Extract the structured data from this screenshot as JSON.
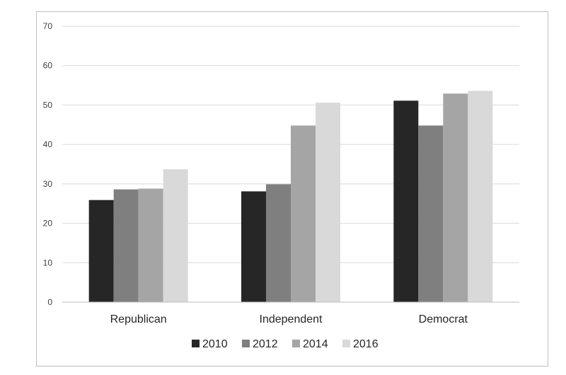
{
  "chart_data": {
    "type": "bar",
    "title": "",
    "xlabel": "",
    "ylabel": "",
    "categories": [
      "Republican",
      "Independent",
      "Democrat"
    ],
    "ylim": [
      0,
      70
    ],
    "yticks": [
      0,
      10,
      20,
      30,
      40,
      50,
      60,
      70
    ],
    "grid": true,
    "legend_position": "bottom",
    "series": [
      {
        "name": "2010",
        "color": "#262626",
        "values": [
          25.9,
          28.1,
          51.1
        ]
      },
      {
        "name": "2012",
        "color": "#7f7f7f",
        "values": [
          28.6,
          29.9,
          44.8
        ]
      },
      {
        "name": "2014",
        "color": "#a5a5a5",
        "values": [
          28.8,
          44.8,
          52.9
        ]
      },
      {
        "name": "2016",
        "color": "#d9d9d9",
        "values": [
          33.7,
          50.6,
          53.6
        ]
      }
    ]
  }
}
